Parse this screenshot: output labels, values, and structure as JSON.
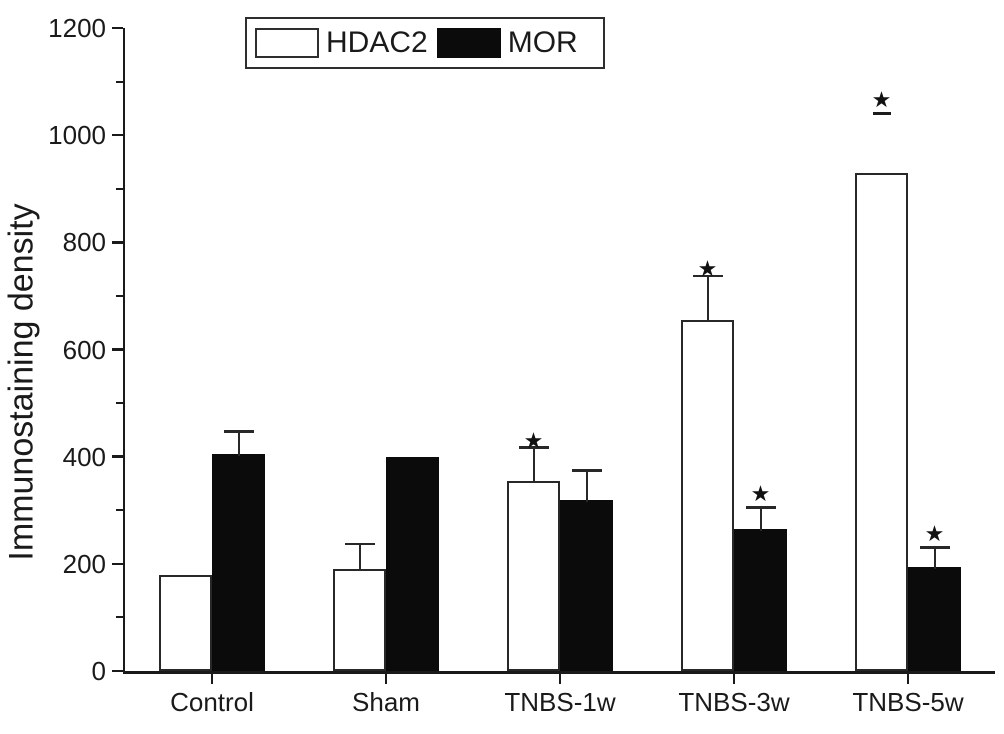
{
  "chart_data": {
    "type": "bar",
    "title": "",
    "xlabel": "",
    "ylabel": "Immunostaining density",
    "categories": [
      "Control",
      "Sham",
      "TNBS-1w",
      "TNBS-3w",
      "TNBS-5w"
    ],
    "series": [
      {
        "name": "HDAC2",
        "fill": "#ffffff",
        "values": [
          180,
          190,
          355,
          655,
          930
        ],
        "errors_up": [
          0,
          45,
          60,
          80,
          0
        ]
      },
      {
        "name": "MOR",
        "fill": "#0b0b0b",
        "values": [
          405,
          400,
          320,
          265,
          195
        ],
        "errors_up": [
          40,
          0,
          52,
          38,
          33
        ]
      }
    ],
    "ylim": [
      0,
      1200
    ],
    "yticks": [
      0,
      200,
      400,
      600,
      800,
      1000,
      1200
    ],
    "minor_yticks": [
      100,
      300,
      500,
      700,
      900,
      1100
    ],
    "grid": false,
    "legend_position": "top-center",
    "legend_items": [
      "HDAC2",
      "MOR"
    ],
    "significance_marker": "★",
    "significance_annotations": [
      {
        "category": "TNBS-1w",
        "series": "HDAC2",
        "y": 430
      },
      {
        "category": "TNBS-3w",
        "series": "HDAC2",
        "y": 750
      },
      {
        "category": "TNBS-3w",
        "series": "MOR",
        "y": 330
      },
      {
        "category": "TNBS-5w",
        "series": "HDAC2",
        "y": 1065,
        "dash_y": 1038
      },
      {
        "category": "TNBS-5w",
        "series": "MOR",
        "y": 255
      }
    ]
  },
  "colors": {
    "axis": "#1a1a1a",
    "text": "#1a1a1a",
    "hdac2_fill": "#ffffff",
    "mor_fill": "#0b0b0b"
  }
}
